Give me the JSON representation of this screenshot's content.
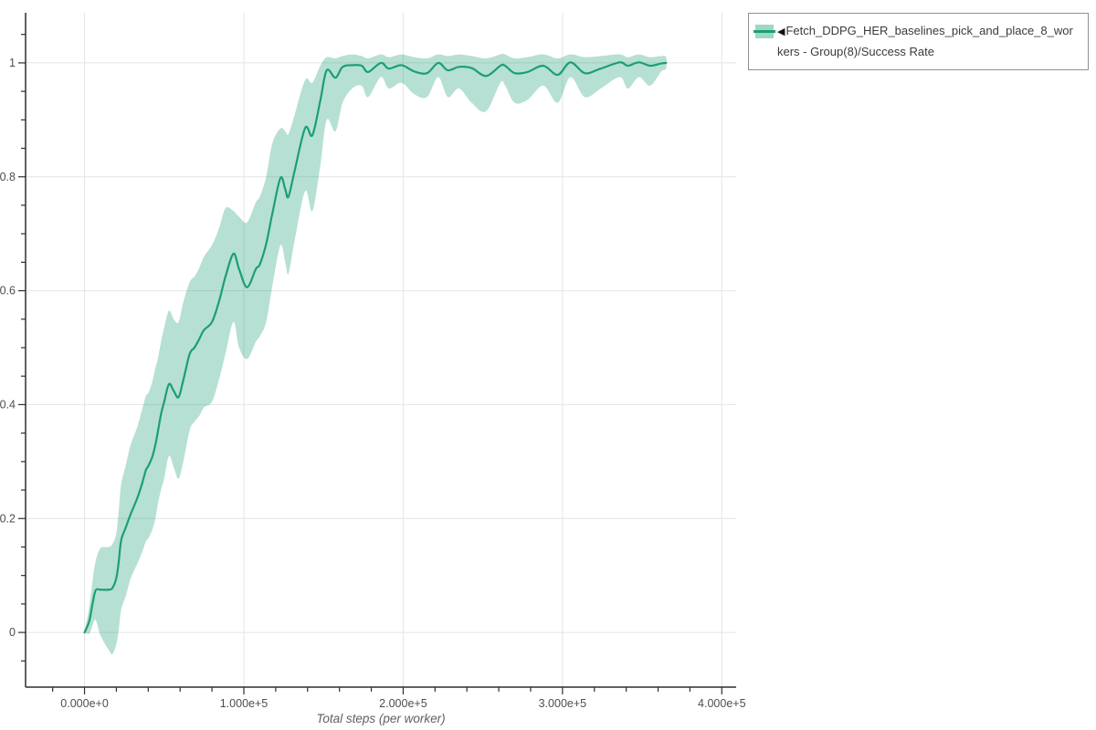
{
  "chart_data": {
    "type": "line",
    "title": "",
    "xlabel": "Total steps (per worker)",
    "ylabel": "",
    "grid": true,
    "x_axis": {
      "tick_values": [
        0,
        100000,
        200000,
        300000,
        400000
      ],
      "tick_labels": [
        "0.000e+0",
        "1.000e+5",
        "2.000e+5",
        "3.000e+5",
        "4.000e+5"
      ],
      "minor_tick_step": 20000,
      "range": [
        -37000,
        409000
      ]
    },
    "y_axis": {
      "tick_values": [
        0,
        0.2,
        0.4,
        0.6,
        0.8,
        1
      ],
      "tick_labels": [
        "0",
        "0.2",
        "0.4",
        "0.6",
        "0.8",
        "1"
      ],
      "minor_tick_step": 0.05,
      "range": [
        -0.096,
        1.088
      ]
    },
    "colors": {
      "line": "#1b9e77",
      "band": "rgba(27,158,119,0.32)",
      "grid": "#e4e4e4",
      "axis": "#2f2f2f",
      "tick_label": "#4e4e4e"
    },
    "legend": {
      "position": "top-right",
      "collapse_marker": "◀",
      "entries": [
        {
          "label": "Fetch_DDPG_HER_baselines_pick_and_place_8_workers - Group(8)/Success Rate",
          "line_color": "#1b9e77",
          "band_color": "rgba(27,158,119,0.42)"
        }
      ]
    },
    "series": [
      {
        "name": "Fetch_DDPG_HER_baselines_pick_and_place_8_workers - Group(8)/Success Rate",
        "color": "#1b9e77",
        "band_color": "rgba(27,158,119,0.32)",
        "points_format": [
          "steps",
          "mean_success_rate",
          "band_lower",
          "band_upper"
        ],
        "points": [
          [
            0,
            0.0,
            0.0,
            0.002
          ],
          [
            3000,
            0.02,
            -0.002,
            0.045
          ],
          [
            5000,
            0.05,
            0.012,
            0.09
          ],
          [
            7000,
            0.074,
            0.022,
            0.125
          ],
          [
            10000,
            0.075,
            -0.005,
            0.148
          ],
          [
            15000,
            0.075,
            -0.03,
            0.15
          ],
          [
            17500,
            0.078,
            -0.038,
            0.155
          ],
          [
            20000,
            0.096,
            -0.02,
            0.175
          ],
          [
            21500,
            0.125,
            0.005,
            0.215
          ],
          [
            23000,
            0.162,
            0.04,
            0.26
          ],
          [
            26000,
            0.185,
            0.065,
            0.295
          ],
          [
            29000,
            0.208,
            0.095,
            0.33
          ],
          [
            33000,
            0.235,
            0.12,
            0.36
          ],
          [
            36000,
            0.26,
            0.14,
            0.39
          ],
          [
            38500,
            0.285,
            0.16,
            0.415
          ],
          [
            40000,
            0.292,
            0.165,
            0.42
          ],
          [
            42500,
            0.308,
            0.18,
            0.44
          ],
          [
            44500,
            0.33,
            0.2,
            0.465
          ],
          [
            46000,
            0.352,
            0.225,
            0.48
          ],
          [
            48000,
            0.383,
            0.25,
            0.51
          ],
          [
            50000,
            0.405,
            0.27,
            0.535
          ],
          [
            53000,
            0.436,
            0.31,
            0.565
          ],
          [
            56000,
            0.424,
            0.29,
            0.55
          ],
          [
            59000,
            0.413,
            0.27,
            0.545
          ],
          [
            62000,
            0.443,
            0.3,
            0.58
          ],
          [
            66000,
            0.489,
            0.355,
            0.615
          ],
          [
            69000,
            0.5,
            0.37,
            0.625
          ],
          [
            72000,
            0.515,
            0.38,
            0.64
          ],
          [
            75000,
            0.531,
            0.395,
            0.66
          ],
          [
            80000,
            0.545,
            0.405,
            0.68
          ],
          [
            84500,
            0.582,
            0.445,
            0.71
          ],
          [
            88500,
            0.625,
            0.49,
            0.745
          ],
          [
            93500,
            0.665,
            0.545,
            0.74
          ],
          [
            97000,
            0.638,
            0.5,
            0.73
          ],
          [
            102000,
            0.606,
            0.48,
            0.72
          ],
          [
            107500,
            0.638,
            0.51,
            0.755
          ],
          [
            110000,
            0.646,
            0.52,
            0.765
          ],
          [
            114000,
            0.682,
            0.545,
            0.8
          ],
          [
            118000,
            0.737,
            0.61,
            0.86
          ],
          [
            123000,
            0.798,
            0.68,
            0.885
          ],
          [
            126000,
            0.778,
            0.65,
            0.88
          ],
          [
            128000,
            0.765,
            0.63,
            0.875
          ],
          [
            132000,
            0.812,
            0.69,
            0.91
          ],
          [
            138500,
            0.886,
            0.775,
            0.97
          ],
          [
            143000,
            0.873,
            0.74,
            0.965
          ],
          [
            148000,
            0.934,
            0.82,
            0.995
          ],
          [
            152000,
            0.987,
            0.9,
            1.01
          ],
          [
            157500,
            0.974,
            0.88,
            1.008
          ],
          [
            162000,
            0.993,
            0.93,
            1.012
          ],
          [
            168000,
            0.996,
            0.955,
            1.015
          ],
          [
            174000,
            0.995,
            0.96,
            1.012
          ],
          [
            178000,
            0.984,
            0.94,
            1.008
          ],
          [
            186000,
            1.0,
            0.975,
            1.015
          ],
          [
            191000,
            0.99,
            0.955,
            1.01
          ],
          [
            199000,
            0.996,
            0.965,
            1.015
          ],
          [
            207000,
            0.985,
            0.945,
            1.01
          ],
          [
            215000,
            0.982,
            0.94,
            1.008
          ],
          [
            222000,
            1.0,
            0.975,
            1.015
          ],
          [
            228000,
            0.987,
            0.94,
            1.012
          ],
          [
            235000,
            0.993,
            0.955,
            1.015
          ],
          [
            243000,
            0.991,
            0.93,
            1.012
          ],
          [
            252000,
            0.977,
            0.915,
            1.008
          ],
          [
            261000,
            0.995,
            0.965,
            1.015
          ],
          [
            264000,
            0.995,
            0.96,
            1.015
          ],
          [
            270000,
            0.982,
            0.93,
            1.008
          ],
          [
            278000,
            0.984,
            0.935,
            1.01
          ],
          [
            288000,
            0.995,
            0.96,
            1.015
          ],
          [
            297000,
            0.979,
            0.93,
            1.008
          ],
          [
            305000,
            1.001,
            0.975,
            1.015
          ],
          [
            314000,
            0.982,
            0.94,
            1.01
          ],
          [
            324000,
            0.99,
            0.955,
            1.012
          ],
          [
            336000,
            1.001,
            0.975,
            1.015
          ],
          [
            341000,
            0.995,
            0.955,
            1.01
          ],
          [
            348000,
            1.001,
            0.975,
            1.015
          ],
          [
            355000,
            0.995,
            0.96,
            1.01
          ],
          [
            362000,
            0.999,
            0.985,
            1.012
          ],
          [
            365000,
            1.0,
            0.99,
            1.01
          ]
        ]
      }
    ]
  }
}
